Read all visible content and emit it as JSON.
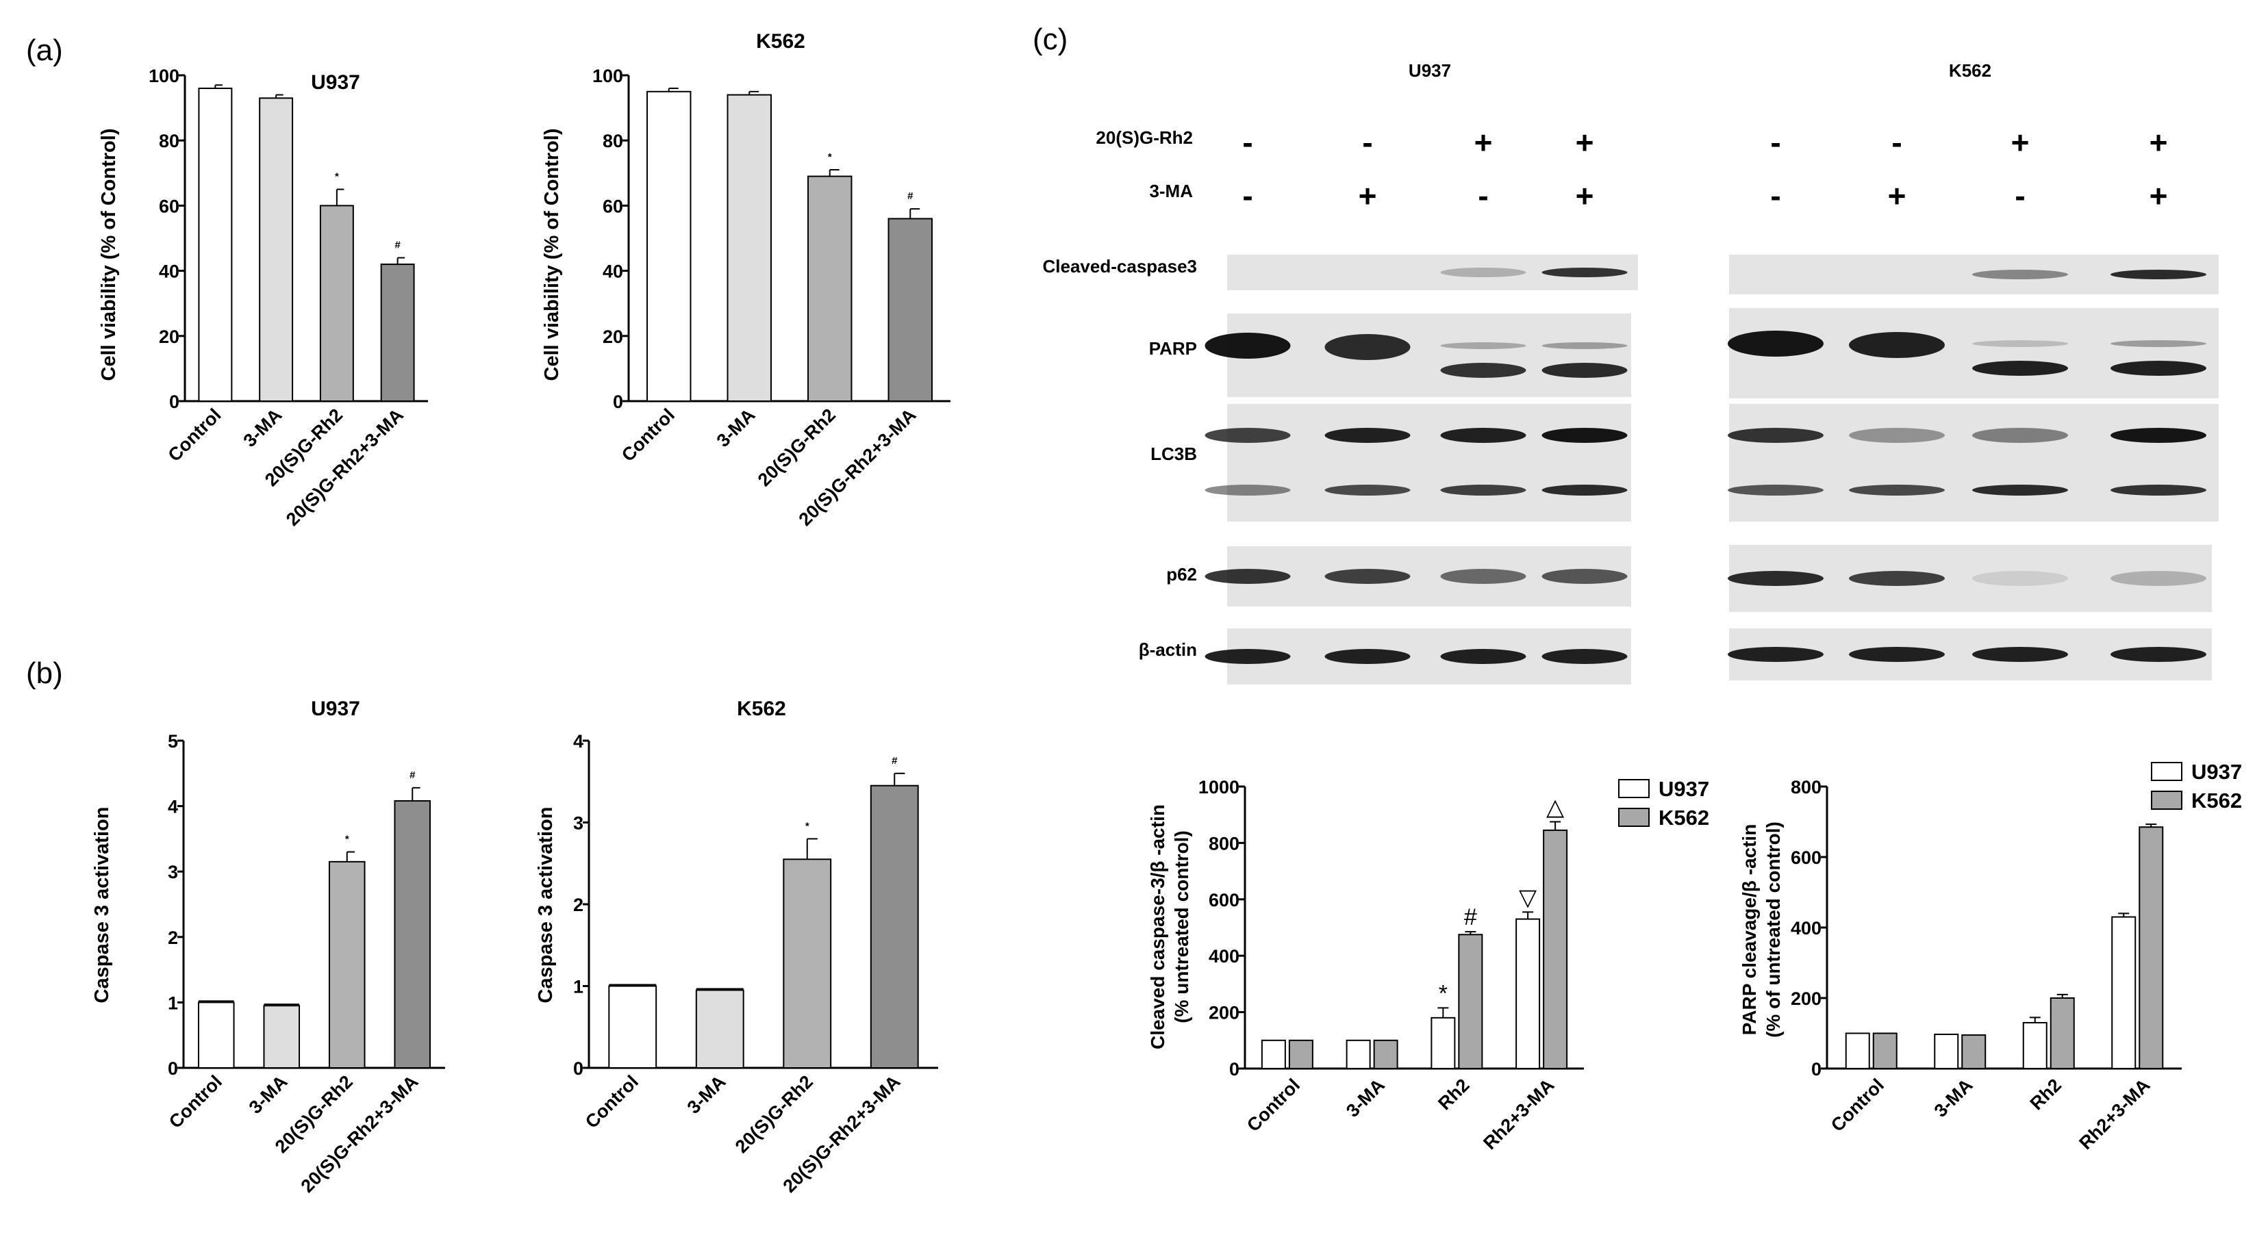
{
  "panels": {
    "a": "(a)",
    "b": "(b)",
    "c": "(c)"
  },
  "charts": [
    {
      "id": "a-u937",
      "title": "U937",
      "ylabel": "Cell viability (% of Control)",
      "ylim": [
        0,
        100
      ],
      "yticks": [
        0,
        20,
        40,
        60,
        80,
        100
      ],
      "categories": [
        "Control",
        "3-MA",
        "20(S)G-Rh2",
        "20(S)G-Rh2+3-MA"
      ],
      "values": [
        96,
        93,
        60,
        42
      ],
      "errors": [
        1,
        1,
        5,
        2
      ],
      "sig": [
        "",
        "",
        "*",
        "#"
      ],
      "colors": [
        "#ffffff",
        "#dedede",
        "#b2b2b2",
        "#8e8e8e"
      ]
    },
    {
      "id": "a-k562",
      "title": "K562",
      "ylabel": "Cell viability (% of Control)",
      "ylim": [
        0,
        100
      ],
      "yticks": [
        0,
        20,
        40,
        60,
        80,
        100
      ],
      "categories": [
        "Control",
        "3-MA",
        "20(S)G-Rh2",
        "20(S)G-Rh2+3-MA"
      ],
      "values": [
        95,
        94,
        69,
        56
      ],
      "errors": [
        1,
        1,
        2,
        3
      ],
      "sig": [
        "",
        "",
        "*",
        "#"
      ],
      "colors": [
        "#ffffff",
        "#dedede",
        "#b2b2b2",
        "#8e8e8e"
      ]
    },
    {
      "id": "b-u937",
      "title": "U937",
      "ylabel": "Caspase 3 activation",
      "ylim": [
        0,
        5
      ],
      "yticks": [
        0,
        1,
        2,
        3,
        4,
        5
      ],
      "categories": [
        "Control",
        "3-MA",
        "20(S)G-Rh2",
        "20(S)G-Rh2+3-MA"
      ],
      "values": [
        1.0,
        0.95,
        3.15,
        4.08
      ],
      "errors": [
        0,
        0,
        0.15,
        0.2
      ],
      "sig": [
        "",
        "",
        "*",
        "#"
      ],
      "colors": [
        "#ffffff",
        "#dedede",
        "#b2b2b2",
        "#8e8e8e"
      ]
    },
    {
      "id": "b-k562",
      "title": "K562",
      "ylabel": "Caspase 3 activation",
      "ylim": [
        0,
        4
      ],
      "yticks": [
        0,
        1,
        2,
        3,
        4
      ],
      "categories": [
        "Control",
        "3-MA",
        "20(S)G-Rh2",
        "20(S)G-Rh2+3-MA"
      ],
      "values": [
        1.0,
        0.95,
        2.55,
        3.45
      ],
      "errors": [
        0,
        0,
        0.25,
        0.15
      ],
      "sig": [
        "",
        "",
        "*",
        "#"
      ],
      "colors": [
        "#ffffff",
        "#dedede",
        "#b2b2b2",
        "#8e8e8e"
      ]
    }
  ],
  "chart_data": [
    {
      "type": "bar",
      "title": "U937",
      "ylabel": "Cell viability (% of Control)",
      "ylim": [
        0,
        100
      ],
      "categories": [
        "Control",
        "3-MA",
        "20(S)G-Rh2",
        "20(S)G-Rh2+3-MA"
      ],
      "values": [
        96,
        93,
        60,
        42
      ]
    },
    {
      "type": "bar",
      "title": "K562",
      "ylabel": "Cell viability (% of Control)",
      "ylim": [
        0,
        100
      ],
      "categories": [
        "Control",
        "3-MA",
        "20(S)G-Rh2",
        "20(S)G-Rh2+3-MA"
      ],
      "values": [
        95,
        94,
        69,
        56
      ]
    },
    {
      "type": "bar",
      "title": "U937",
      "ylabel": "Caspase 3 activation",
      "ylim": [
        0,
        5
      ],
      "categories": [
        "Control",
        "3-MA",
        "20(S)G-Rh2",
        "20(S)G-Rh2+3-MA"
      ],
      "values": [
        1.0,
        0.95,
        3.15,
        4.08
      ]
    },
    {
      "type": "bar",
      "title": "K562",
      "ylabel": "Caspase 3 activation",
      "ylim": [
        0,
        4
      ],
      "categories": [
        "Control",
        "3-MA",
        "20(S)G-Rh2",
        "20(S)G-Rh2+3-MA"
      ],
      "values": [
        1.0,
        0.95,
        2.55,
        3.45
      ]
    },
    {
      "type": "bar",
      "ylabel": "Cleaved caspase-3/β -actin (% untreated control)",
      "ylim": [
        0,
        1000
      ],
      "categories": [
        "Control",
        "3-MA",
        "Rh2",
        "Rh2+3-MA"
      ],
      "series": [
        {
          "name": "U937",
          "values": [
            100,
            100,
            180,
            530
          ]
        },
        {
          "name": "K562",
          "values": [
            100,
            100,
            475,
            845
          ]
        }
      ]
    },
    {
      "type": "bar",
      "ylabel": "PARP cleavage/β -actin (% of untreated control)",
      "ylim": [
        0,
        800
      ],
      "categories": [
        "Control",
        "3-MA",
        "Rh2",
        "Rh2+3-MA"
      ],
      "series": [
        {
          "name": "U937",
          "values": [
            100,
            97,
            130,
            430
          ]
        },
        {
          "name": "K562",
          "values": [
            100,
            95,
            200,
            685
          ]
        }
      ]
    }
  ],
  "grouped": [
    {
      "id": "c-casp",
      "ylabel_line1": "Cleaved caspase-3/β -actin",
      "ylabel_line2": "(% untreated control)",
      "ylim": [
        0,
        1000
      ],
      "yticks": [
        0,
        200,
        400,
        600,
        800,
        1000
      ],
      "categories": [
        "Control",
        "3-MA",
        "Rh2",
        "Rh2+3-MA"
      ],
      "series": [
        {
          "name": "U937",
          "color": "#ffffff",
          "values": [
            100,
            100,
            180,
            530
          ],
          "errors": [
            0,
            0,
            35,
            25
          ]
        },
        {
          "name": "K562",
          "color": "#a8a8a8",
          "values": [
            100,
            100,
            475,
            845
          ],
          "errors": [
            0,
            0,
            10,
            30
          ]
        }
      ],
      "sig": [
        [
          "",
          ""
        ],
        [
          "",
          ""
        ],
        [
          "*",
          "#"
        ],
        [
          "▽",
          "△"
        ]
      ]
    },
    {
      "id": "c-parp",
      "ylabel_line1": "PARP cleavage/β -actin",
      "ylabel_line2": "(% of untreated control)",
      "ylim": [
        0,
        800
      ],
      "yticks": [
        0,
        200,
        400,
        600,
        800
      ],
      "categories": [
        "Control",
        "3-MA",
        "Rh2",
        "Rh2+3-MA"
      ],
      "series": [
        {
          "name": "U937",
          "color": "#ffffff",
          "values": [
            100,
            97,
            130,
            430
          ],
          "errors": [
            0,
            0,
            15,
            10
          ]
        },
        {
          "name": "K562",
          "color": "#a8a8a8",
          "values": [
            100,
            95,
            200,
            685
          ],
          "errors": [
            0,
            0,
            10,
            8
          ]
        }
      ],
      "sig": [
        [
          "",
          ""
        ],
        [
          "",
          ""
        ],
        [
          "",
          ""
        ],
        [
          "",
          ""
        ]
      ]
    }
  ],
  "western": {
    "cell_lines": [
      "U937",
      "K562"
    ],
    "treatments": [
      {
        "label": "20(S)G-Rh2",
        "signs": [
          "-",
          "-",
          "+",
          "+"
        ]
      },
      {
        "label": "3-MA",
        "signs": [
          "-",
          "+",
          "-",
          "+"
        ]
      }
    ],
    "rows": [
      "Cleaved-caspase3",
      "PARP",
      "LC3B",
      "p62",
      "β-actin"
    ]
  }
}
